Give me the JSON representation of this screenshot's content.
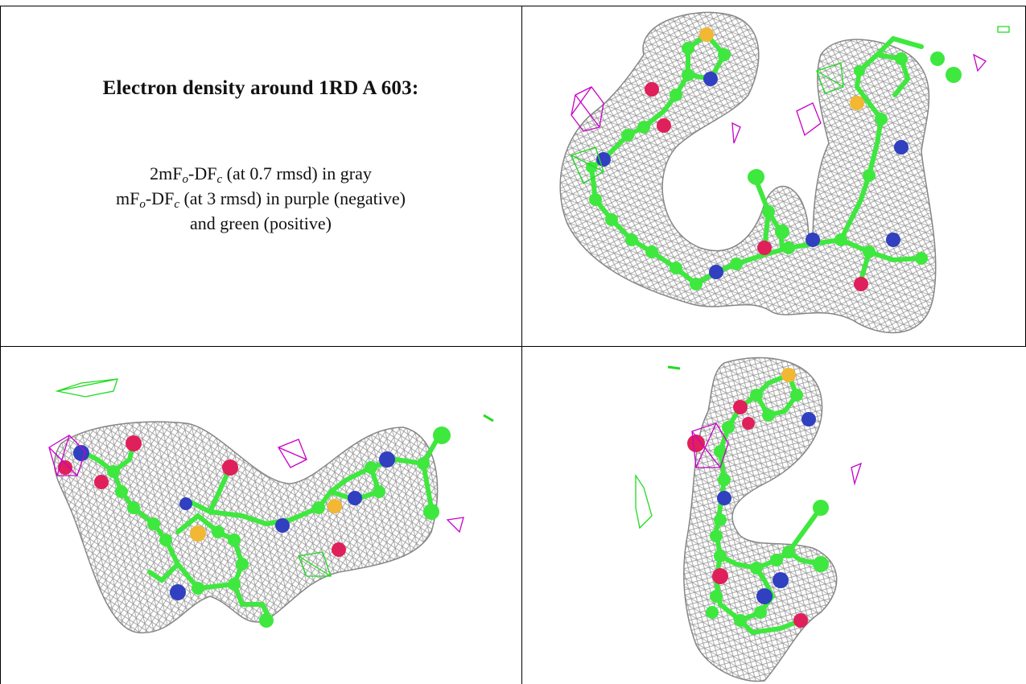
{
  "caption": {
    "title": "Electron density around 1RD A 603:",
    "line1": "2mFₒ-DFᶜ (at 0.7 rmsd) in gray",
    "line2": "mFₒ-DFᶜ (at 3 rmsd) in purple (negative)",
    "line3": "and green (positive)"
  },
  "legend_colors": {
    "density_2fofc": "#9a9a9a",
    "negative_difference": "#c800c8",
    "positive_difference": "#1fdc1f",
    "carbon": "#39e839",
    "nitrogen": "#3344cc",
    "oxygen": "#e0205a",
    "sulfur": "#f0b830"
  },
  "panels": [
    {
      "name": "view-top-right"
    },
    {
      "name": "view-bottom-left"
    },
    {
      "name": "view-bottom-right"
    }
  ]
}
